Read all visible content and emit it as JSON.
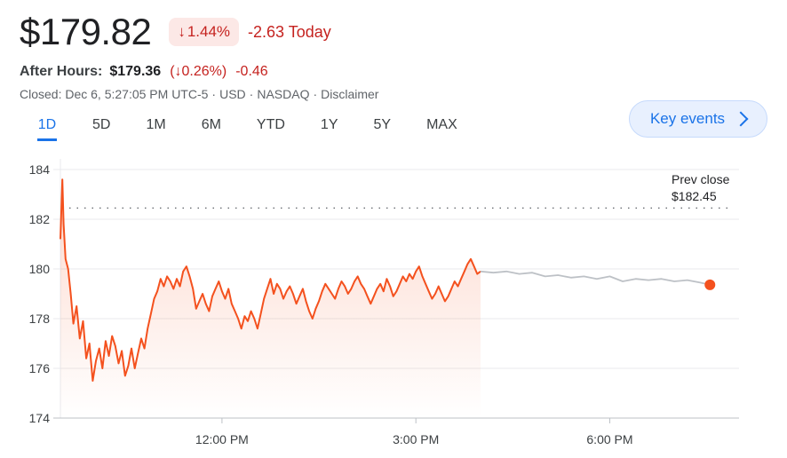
{
  "quote": {
    "price": "$179.82",
    "change_percent": "1.44%",
    "change_today": "-2.63 Today",
    "after_hours_label": "After Hours:",
    "after_hours_price": "$179.36",
    "after_hours_percent_open": "(",
    "after_hours_percent": "0.26%)",
    "after_hours_change": "-0.46",
    "closed_info": "Closed: Dec 6, 5:27:05 PM UTC-5",
    "currency": "USD",
    "exchange": "NASDAQ",
    "disclaimer": "Disclaimer",
    "colors": {
      "down": "#c5221f",
      "accent": "#1a73e8"
    }
  },
  "tabs": [
    {
      "label": "1D",
      "active": true
    },
    {
      "label": "5D",
      "active": false
    },
    {
      "label": "1M",
      "active": false
    },
    {
      "label": "6M",
      "active": false
    },
    {
      "label": "YTD",
      "active": false
    },
    {
      "label": "1Y",
      "active": false
    },
    {
      "label": "5Y",
      "active": false
    },
    {
      "label": "MAX",
      "active": false
    }
  ],
  "key_events_label": "Key events",
  "chart_data": {
    "type": "line",
    "xlabel": "",
    "ylabel": "",
    "ylim": [
      174,
      184
    ],
    "yticks": [
      174,
      176,
      178,
      180,
      182,
      184
    ],
    "xticks": [
      {
        "t": 12.0,
        "label": "12:00 PM"
      },
      {
        "t": 15.0,
        "label": "3:00 PM"
      },
      {
        "t": 18.0,
        "label": "6:00 PM"
      }
    ],
    "xlim": [
      9.5,
      20.0
    ],
    "grid": true,
    "prev_close": {
      "label_line1": "Prev close",
      "label_line2": "$182.45",
      "value": 182.45
    },
    "series": [
      {
        "session": "regular",
        "color": "#f4511e",
        "x": [
          9.5,
          9.53,
          9.55,
          9.58,
          9.62,
          9.66,
          9.7,
          9.75,
          9.8,
          9.85,
          9.9,
          9.95,
          10.0,
          10.05,
          10.1,
          10.15,
          10.2,
          10.25,
          10.3,
          10.35,
          10.4,
          10.45,
          10.5,
          10.55,
          10.6,
          10.65,
          10.7,
          10.75,
          10.8,
          10.85,
          10.9,
          10.95,
          11.0,
          11.05,
          11.1,
          11.15,
          11.2,
          11.25,
          11.3,
          11.35,
          11.4,
          11.45,
          11.5,
          11.55,
          11.6,
          11.65,
          11.7,
          11.75,
          11.8,
          11.85,
          11.9,
          11.95,
          12.0,
          12.05,
          12.1,
          12.15,
          12.2,
          12.25,
          12.3,
          12.35,
          12.4,
          12.45,
          12.5,
          12.55,
          12.6,
          12.65,
          12.7,
          12.75,
          12.8,
          12.85,
          12.9,
          12.95,
          13.0,
          13.05,
          13.1,
          13.15,
          13.2,
          13.25,
          13.3,
          13.35,
          13.4,
          13.45,
          13.5,
          13.55,
          13.6,
          13.65,
          13.7,
          13.75,
          13.8,
          13.85,
          13.9,
          13.95,
          14.0,
          14.05,
          14.1,
          14.15,
          14.2,
          14.25,
          14.3,
          14.35,
          14.4,
          14.45,
          14.5,
          14.55,
          14.6,
          14.65,
          14.7,
          14.75,
          14.8,
          14.85,
          14.9,
          14.95,
          15.0,
          15.05,
          15.1,
          15.15,
          15.2,
          15.25,
          15.3,
          15.35,
          15.4,
          15.45,
          15.5,
          15.55,
          15.6,
          15.65,
          15.7,
          15.75,
          15.8,
          15.85,
          15.9,
          15.95,
          16.0
        ],
        "y": [
          181.2,
          183.6,
          181.8,
          180.4,
          180.0,
          179.0,
          177.8,
          178.5,
          177.2,
          177.9,
          176.4,
          177.0,
          175.5,
          176.3,
          176.8,
          176.0,
          177.1,
          176.5,
          177.3,
          176.9,
          176.2,
          176.7,
          175.7,
          176.1,
          176.8,
          176.0,
          176.6,
          177.2,
          176.8,
          177.6,
          178.2,
          178.8,
          179.1,
          179.6,
          179.3,
          179.7,
          179.5,
          179.2,
          179.6,
          179.3,
          179.9,
          180.1,
          179.7,
          179.2,
          178.4,
          178.7,
          179.0,
          178.6,
          178.3,
          178.9,
          179.2,
          179.5,
          179.1,
          178.8,
          179.2,
          178.6,
          178.3,
          178.0,
          177.6,
          178.1,
          177.9,
          178.3,
          178.0,
          177.6,
          178.2,
          178.8,
          179.2,
          179.6,
          179.0,
          179.4,
          179.2,
          178.8,
          179.1,
          179.3,
          179.0,
          178.6,
          178.9,
          179.2,
          178.7,
          178.3,
          178.0,
          178.4,
          178.7,
          179.1,
          179.4,
          179.2,
          179.0,
          178.8,
          179.2,
          179.5,
          179.3,
          179.0,
          179.2,
          179.5,
          179.7,
          179.4,
          179.2,
          178.9,
          178.6,
          178.9,
          179.2,
          179.4,
          179.1,
          179.6,
          179.3,
          178.9,
          179.1,
          179.4,
          179.7,
          179.5,
          179.8,
          179.6,
          179.9,
          180.1,
          179.7,
          179.4,
          179.1,
          178.8,
          179.0,
          179.3,
          179.0,
          178.7,
          178.9,
          179.2,
          179.5,
          179.3,
          179.6,
          179.9,
          180.2,
          180.4,
          180.1,
          179.8,
          179.9
        ]
      },
      {
        "session": "after-hours",
        "color": "#bdc1c6",
        "x": [
          16.0,
          16.2,
          16.4,
          16.6,
          16.8,
          17.0,
          17.2,
          17.4,
          17.6,
          17.8,
          18.0,
          18.2,
          18.4,
          18.6,
          18.8,
          19.0,
          19.2,
          19.4,
          19.55
        ],
        "y": [
          179.9,
          179.85,
          179.9,
          179.8,
          179.85,
          179.7,
          179.75,
          179.65,
          179.7,
          179.6,
          179.7,
          179.5,
          179.6,
          179.55,
          179.6,
          179.5,
          179.55,
          179.45,
          179.36
        ]
      }
    ]
  }
}
